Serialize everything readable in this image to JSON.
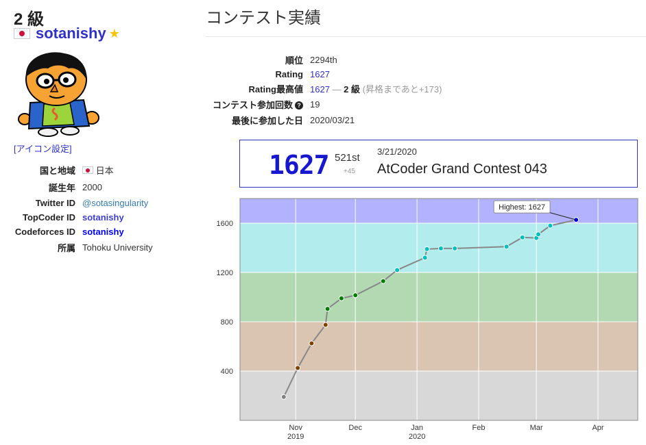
{
  "profile": {
    "rank_label": "2 級",
    "username": "sotanishy",
    "icon_settings_link": "[アイコン設定]",
    "fields": {
      "country_label": "国と地域",
      "country_value": "日本",
      "birth_label": "誕生年",
      "birth_value": "2000",
      "twitter_label": "Twitter ID",
      "twitter_value": "@sotasingularity",
      "topcoder_label": "TopCoder ID",
      "topcoder_value": "sotanishy",
      "codeforces_label": "Codeforces ID",
      "codeforces_value": "sotanishy",
      "affiliation_label": "所属",
      "affiliation_value": "Tohoku University"
    }
  },
  "contest": {
    "title": "コンテスト実績",
    "rank_label": "順位",
    "rank_value": "2294th",
    "rating_label": "Rating",
    "rating_value": "1627",
    "highest_label": "Rating最高値",
    "highest_value": "1627",
    "highest_dash": "—",
    "highest_grade": "2 級",
    "highest_note": "(昇格まであと+173)",
    "count_label": "コンテスト参加回数",
    "count_value": "19",
    "last_label": "最後に参加した日",
    "last_value": "2020/03/21"
  },
  "card": {
    "rating": "1627",
    "place": "521st",
    "delta": "+45",
    "date": "3/21/2020",
    "contest_name": "AtCoder Grand Contest 043"
  },
  "colors": {
    "brand_blue": "#2f31c8",
    "gray_band": "#d8d8d8",
    "brown_band": "#d9c5b2",
    "green_band": "#b2d9b2",
    "cyan_band": "#b2ecec",
    "blue_band": "#b2b2ff"
  },
  "chart_data": {
    "type": "line",
    "series": [
      {
        "values": [
          {
            "date": "2019-10-26",
            "rating": 190
          },
          {
            "date": "2019-11-02",
            "rating": 425
          },
          {
            "date": "2019-11-09",
            "rating": 625
          },
          {
            "date": "2019-11-16",
            "rating": 775
          },
          {
            "date": "2019-11-17",
            "rating": 905
          },
          {
            "date": "2019-11-24",
            "rating": 990
          },
          {
            "date": "2019-12-01",
            "rating": 1015
          },
          {
            "date": "2019-12-15",
            "rating": 1130
          },
          {
            "date": "2019-12-22",
            "rating": 1220
          },
          {
            "date": "2020-01-05",
            "rating": 1320
          },
          {
            "date": "2020-01-06",
            "rating": 1390
          },
          {
            "date": "2020-01-13",
            "rating": 1395
          },
          {
            "date": "2020-01-20",
            "rating": 1395
          },
          {
            "date": "2020-02-15",
            "rating": 1410
          },
          {
            "date": "2020-02-23",
            "rating": 1485
          },
          {
            "date": "2020-03-01",
            "rating": 1480
          },
          {
            "date": "2020-03-02",
            "rating": 1510
          },
          {
            "date": "2020-03-08",
            "rating": 1580
          },
          {
            "date": "2020-03-21",
            "rating": 1627
          }
        ]
      }
    ],
    "yticks": [
      400,
      800,
      1200,
      1600
    ],
    "ylim": [
      0,
      1800
    ],
    "xlim": [
      "2019-10-04",
      "2020-04-21"
    ],
    "xticks": [
      {
        "date": "2019-11-01",
        "label": "Nov",
        "sub": "2019"
      },
      {
        "date": "2019-12-01",
        "label": "Dec",
        "sub": ""
      },
      {
        "date": "2020-01-01",
        "label": "Jan",
        "sub": "2020"
      },
      {
        "date": "2020-02-01",
        "label": "Feb",
        "sub": ""
      },
      {
        "date": "2020-03-01",
        "label": "Mar",
        "sub": ""
      },
      {
        "date": "2020-04-01",
        "label": "Apr",
        "sub": ""
      }
    ],
    "bands": [
      {
        "from": 0,
        "to": 400,
        "color": "#d8d8d8"
      },
      {
        "from": 400,
        "to": 800,
        "color": "#d9c5b2"
      },
      {
        "from": 800,
        "to": 1200,
        "color": "#b2d9b2"
      },
      {
        "from": 1200,
        "to": 1600,
        "color": "#b2ecec"
      },
      {
        "from": 1600,
        "to": 1800,
        "color": "#b2b2ff"
      }
    ],
    "tier_colors": [
      {
        "from": 0,
        "to": 400,
        "color": "#808080"
      },
      {
        "from": 400,
        "to": 800,
        "color": "#804000"
      },
      {
        "from": 800,
        "to": 1200,
        "color": "#008000"
      },
      {
        "from": 1200,
        "to": 1600,
        "color": "#00c0c0"
      },
      {
        "from": 1600,
        "to": 2000,
        "color": "#0000ff"
      }
    ],
    "tooltip": "Highest: 1627",
    "grid": true
  }
}
